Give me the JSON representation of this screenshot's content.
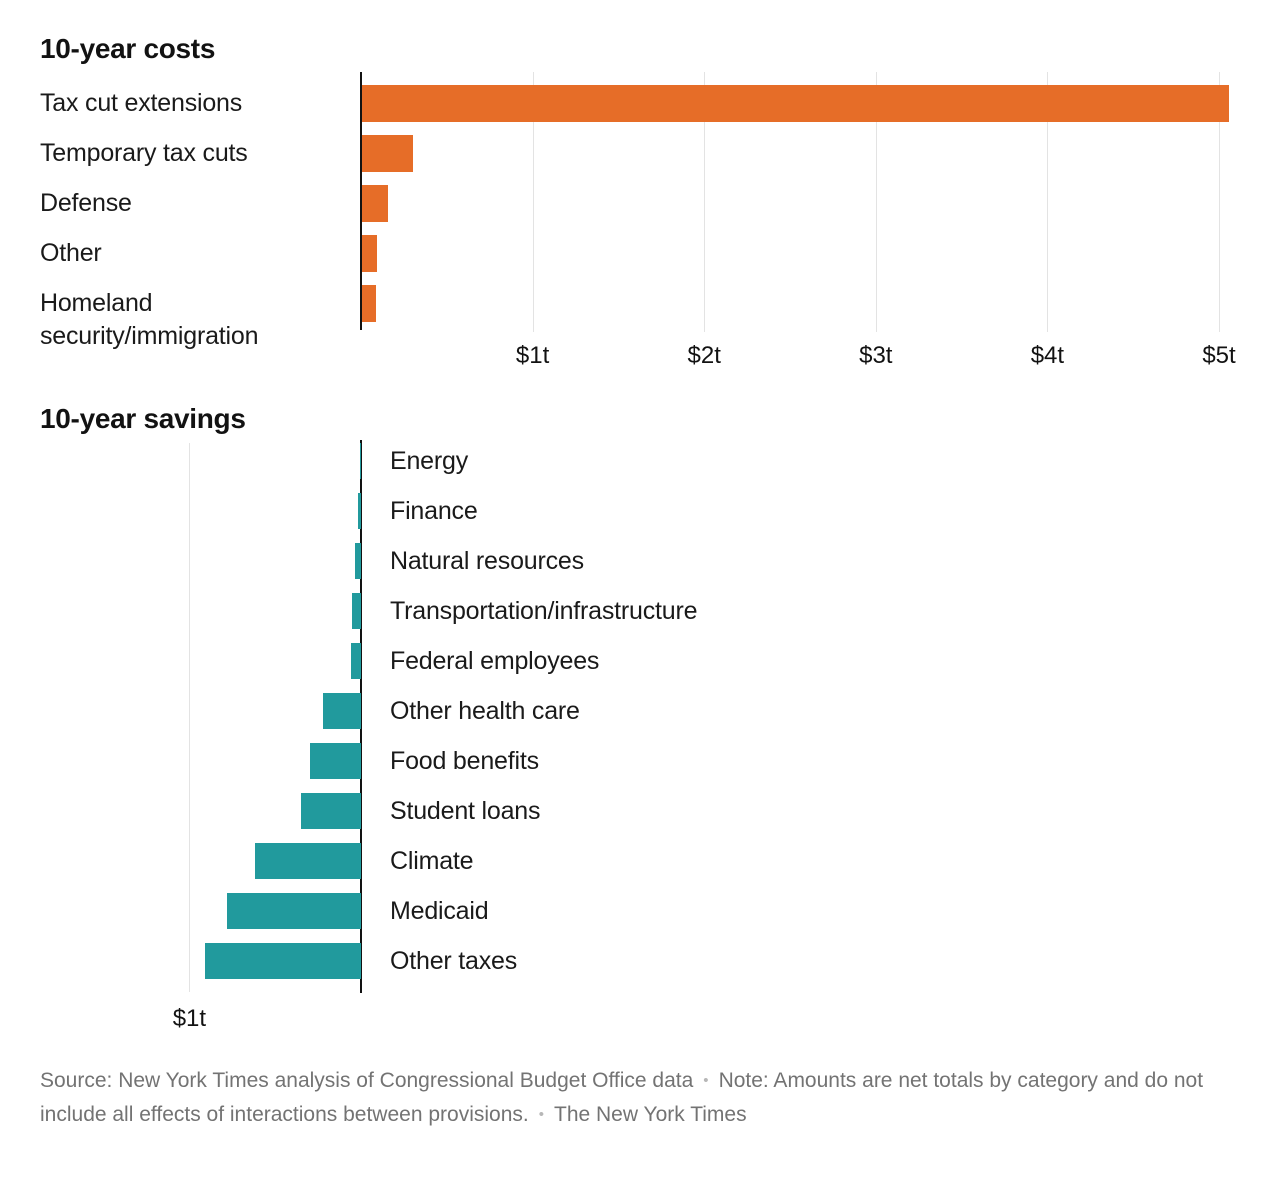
{
  "page": {
    "background": "#ffffff"
  },
  "colors": {
    "costs_bar": "#e66d28",
    "savings_bar": "#219a9d",
    "axis_line": "#121212",
    "gridline": "#e3e3e3",
    "label_text": "#1a1a1a",
    "footer_text": "#737373",
    "bullet": "#b7b7b7"
  },
  "footer": {
    "source": "Source: New York Times analysis of Congressional Budget Office data",
    "note": "Note: Amounts are net totals by category and do not include all effects of interactions between provisions.",
    "credit": "The New York Times",
    "separator": "•"
  },
  "chart_data": [
    {
      "id": "costs",
      "type": "bar",
      "orientation": "horizontal",
      "bar_direction": "right",
      "title": "10-year costs",
      "unit": "trillion USD",
      "categories": [
        "Tax cut extensions",
        "Temporary tax cuts",
        "Defense",
        "Other",
        "Homeland security/immigration"
      ],
      "values": [
        5.05,
        0.3,
        0.15,
        0.09,
        0.08
      ],
      "bar_color": "#e66d28",
      "axis_ticks": [
        {
          "value": 1,
          "label": "$1t"
        },
        {
          "value": 2,
          "label": "$2t"
        },
        {
          "value": 3,
          "label": "$3t"
        },
        {
          "value": 4,
          "label": "$4t"
        },
        {
          "value": 5,
          "label": "$5t"
        }
      ],
      "xlim": [
        0,
        5.27
      ],
      "gridlines": true,
      "legend": "none",
      "label_side": "left"
    },
    {
      "id": "savings",
      "type": "bar",
      "orientation": "horizontal",
      "bar_direction": "left",
      "title": "10-year savings",
      "unit": "trillion USD",
      "categories": [
        "Energy",
        "Finance",
        "Natural resources",
        "Transportation/infrastructure",
        "Federal employees",
        "Other health care",
        "Food benefits",
        "Student loans",
        "Climate",
        "Medicaid",
        "Other taxes"
      ],
      "values": [
        0.005,
        0.02,
        0.035,
        0.05,
        0.06,
        0.22,
        0.3,
        0.35,
        0.62,
        0.78,
        0.91
      ],
      "bar_color": "#219a9d",
      "axis_ticks": [
        {
          "value": 1,
          "label": "$1t"
        }
      ],
      "xlim": [
        0,
        1.18
      ],
      "gridlines": true,
      "legend": "none",
      "label_side": "right"
    }
  ]
}
